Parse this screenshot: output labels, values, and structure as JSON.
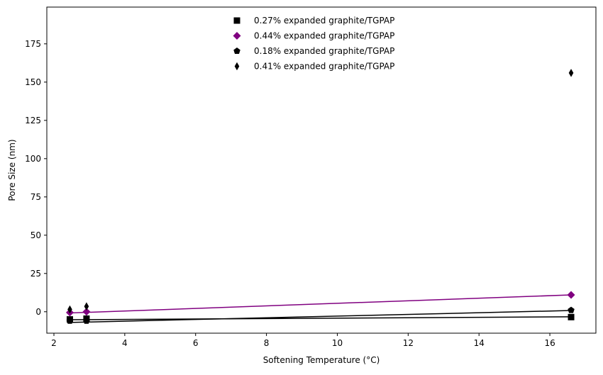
{
  "chart_data": {
    "type": "scatter",
    "title": "",
    "xlabel": "Softening Temperature (°C)",
    "ylabel": "Pore Size (nm)",
    "xlim": [
      1.8,
      17.3
    ],
    "ylim": [
      -14,
      199
    ],
    "xticks": [
      2,
      4,
      6,
      8,
      10,
      12,
      14,
      16
    ],
    "yticks": [
      0,
      25,
      50,
      75,
      100,
      125,
      150,
      175
    ],
    "grid": false,
    "legend_position": "top-center",
    "series": [
      {
        "name": "0.27% expanded graphite/TGPAP",
        "marker": "square",
        "color": "#000000",
        "x": [
          2.45,
          2.92,
          16.6
        ],
        "y": [
          -5.0,
          -4.5,
          -3.5
        ],
        "trend": {
          "x": [
            2.45,
            16.6
          ],
          "y": [
            -5.2,
            -3.3
          ]
        }
      },
      {
        "name": "0.44% expanded graphite/TGPAP",
        "marker": "diamond",
        "color": "#800080",
        "x": [
          2.45,
          2.92,
          16.6
        ],
        "y": [
          -0.5,
          0.0,
          11.0
        ],
        "trend": {
          "x": [
            2.45,
            16.6
          ],
          "y": [
            -0.8,
            11.0
          ]
        }
      },
      {
        "name": "0.18% expanded graphite/TGPAP",
        "marker": "pentagon",
        "color": "#000000",
        "x": [
          2.45,
          2.92,
          16.6
        ],
        "y": [
          -6.0,
          -6.0,
          1.0
        ],
        "trend": {
          "x": [
            2.45,
            16.6
          ],
          "y": [
            -7.0,
            0.8
          ]
        }
      },
      {
        "name": "0.41% expanded graphite/TGPAP",
        "marker": "thin_diamond",
        "color": "#000000",
        "x": [
          2.45,
          2.92,
          16.6
        ],
        "y": [
          1.5,
          3.5,
          156.0
        ]
      }
    ]
  }
}
